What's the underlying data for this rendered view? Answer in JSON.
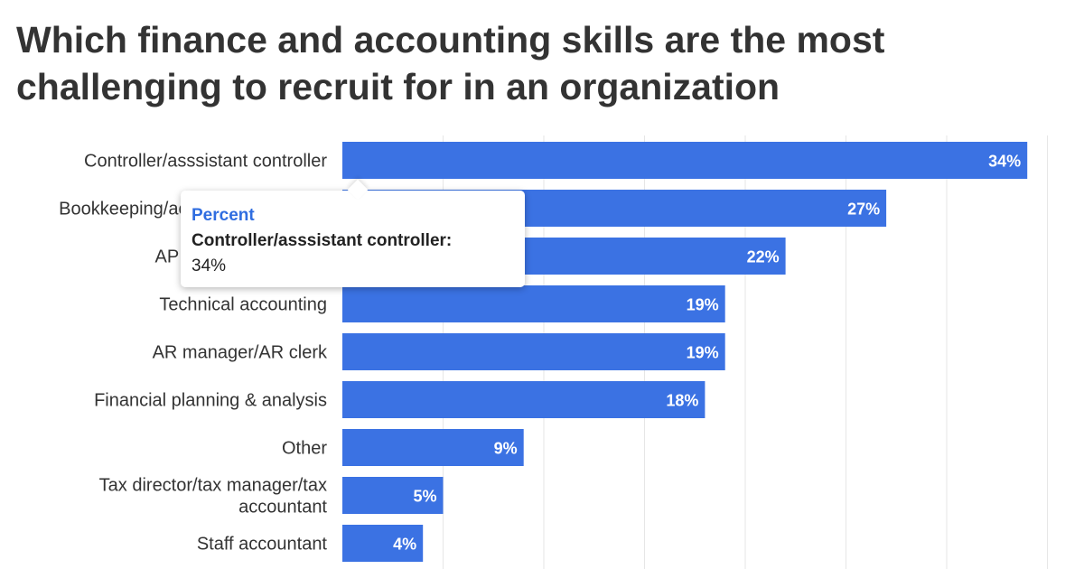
{
  "title": "Which finance and accounting skills are the most challenging to recruit for in an organization",
  "colors": {
    "bar": "#3b72e3",
    "grid": "#e6e6e6",
    "text": "#333333",
    "tooltip_series": "#2f6de0"
  },
  "tooltip": {
    "series": "Percent",
    "category": "Controller/asssistant controller:",
    "value": "34%"
  },
  "chart_data": {
    "type": "bar",
    "orientation": "horizontal",
    "categories": [
      "Controller/asssistant controller",
      "Bookkeeping/accounting/financial",
      "AP manager/AP clerk",
      "Technical accounting",
      "AR manager/AR clerk",
      "Financial planning & analysis",
      "Other",
      "Tax director/tax manager/tax accountant",
      "Staff accountant"
    ],
    "series": [
      {
        "name": "Percent",
        "values": [
          34,
          27,
          22,
          19,
          19,
          18,
          9,
          5,
          4
        ]
      }
    ],
    "data_labels": [
      "34%",
      "27%",
      "22%",
      "19%",
      "19%",
      "18%",
      "9%",
      "5%",
      "4%"
    ],
    "xlim": [
      0,
      35
    ],
    "grid": true,
    "legend": "none"
  }
}
